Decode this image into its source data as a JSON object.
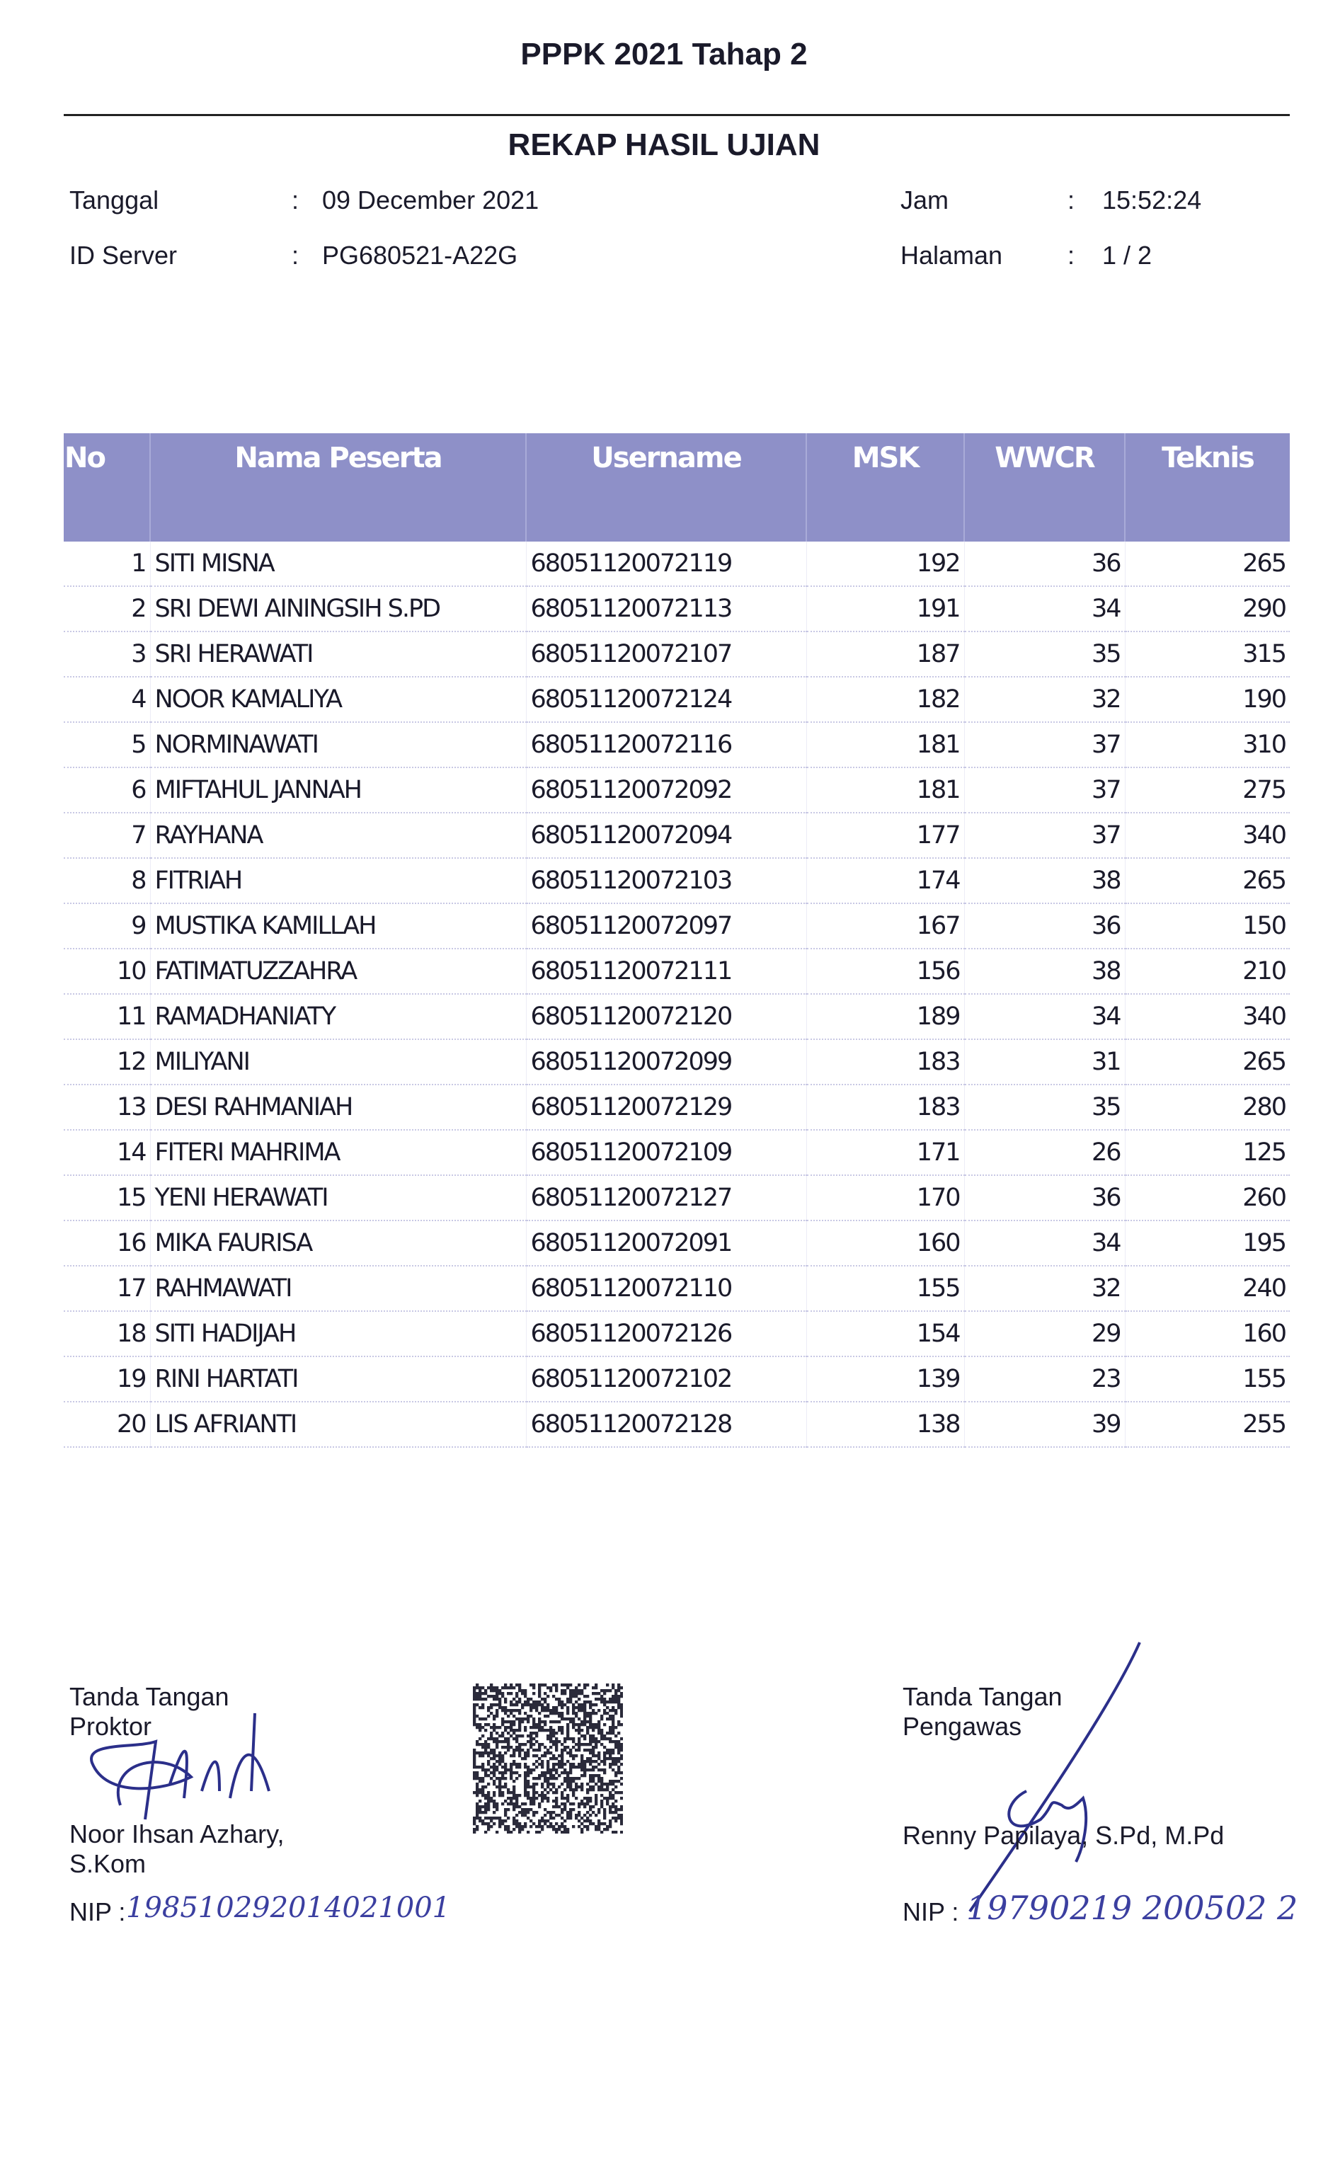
{
  "header": {
    "title": "PPPK 2021 Tahap 2",
    "subtitle": "REKAP HASIL UJIAN"
  },
  "meta": {
    "tanggal_label": "Tanggal",
    "tanggal_value": "09 December 2021",
    "server_label": "ID Server",
    "server_value": "PG680521-A22G",
    "jam_label": "Jam",
    "jam_value": "15:52:24",
    "halaman_label": "Halaman",
    "halaman_value": "1 / 2",
    "colon": ":"
  },
  "table": {
    "header_color": "#8e90c8",
    "columns": [
      "No",
      "Nama Peserta",
      "Username",
      "MSK",
      "WWCR",
      "Teknis"
    ],
    "rows": [
      [
        "1",
        "SITI MISNA",
        "68051120072119",
        "192",
        "36",
        "265"
      ],
      [
        "2",
        "SRI DEWI AININGSIH S.PD",
        "68051120072113",
        "191",
        "34",
        "290"
      ],
      [
        "3",
        "SRI HERAWATI",
        "68051120072107",
        "187",
        "35",
        "315"
      ],
      [
        "4",
        "NOOR KAMALIYA",
        "68051120072124",
        "182",
        "32",
        "190"
      ],
      [
        "5",
        "NORMINAWATI",
        "68051120072116",
        "181",
        "37",
        "310"
      ],
      [
        "6",
        "MIFTAHUL JANNAH",
        "68051120072092",
        "181",
        "37",
        "275"
      ],
      [
        "7",
        "RAYHANA",
        "68051120072094",
        "177",
        "37",
        "340"
      ],
      [
        "8",
        "FITRIAH",
        "68051120072103",
        "174",
        "38",
        "265"
      ],
      [
        "9",
        "MUSTIKA KAMILLAH",
        "68051120072097",
        "167",
        "36",
        "150"
      ],
      [
        "10",
        "FATIMATUZZAHRA",
        "68051120072111",
        "156",
        "38",
        "210"
      ],
      [
        "11",
        "RAMADHANIATY",
        "68051120072120",
        "189",
        "34",
        "340"
      ],
      [
        "12",
        "MILIYANI",
        "68051120072099",
        "183",
        "31",
        "265"
      ],
      [
        "13",
        "DESI RAHMANIAH",
        "68051120072129",
        "183",
        "35",
        "280"
      ],
      [
        "14",
        "FITERI MAHRIMA",
        "68051120072109",
        "171",
        "26",
        "125"
      ],
      [
        "15",
        "YENI HERAWATI",
        "68051120072127",
        "170",
        "36",
        "260"
      ],
      [
        "16",
        "MIKA FAURISA",
        "68051120072091",
        "160",
        "34",
        "195"
      ],
      [
        "17",
        "RAHMAWATI",
        "68051120072110",
        "155",
        "32",
        "240"
      ],
      [
        "18",
        "SITI HADIJAH",
        "68051120072126",
        "154",
        "29",
        "160"
      ],
      [
        "19",
        "RINI HARTATI",
        "68051120072102",
        "139",
        "23",
        "155"
      ],
      [
        "20",
        "LIS AFRIANTI",
        "68051120072128",
        "138",
        "39",
        "255"
      ]
    ]
  },
  "signatures": {
    "proktor": {
      "line1": "Tanda Tangan",
      "line2": "Proktor",
      "name1": "Noor Ihsan Azhary,",
      "name2": "S.Kom",
      "nip_label": "NIP :",
      "nip_handwritten": "198510292014021001"
    },
    "pengawas": {
      "line1": "Tanda Tangan",
      "line2": "Pengawas",
      "name1": "Renny Papilaya, S.Pd, M.Pd",
      "nip_label": "NIP :",
      "nip_handwritten": "19790219 200502 2"
    }
  }
}
